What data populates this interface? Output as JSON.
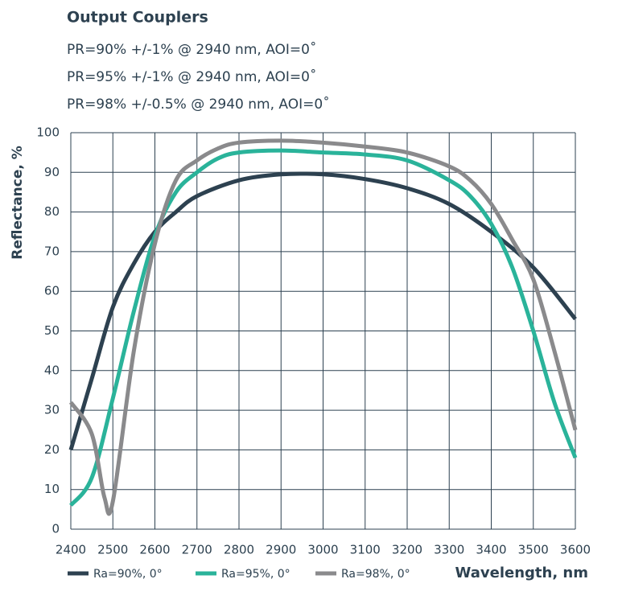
{
  "chart_data": {
    "type": "line",
    "title": "Output Couplers",
    "subtitle": [
      "PR=90% +/-1% @ 2940 nm, AOI=0˚",
      "PR=95% +/-1% @ 2940 nm, AOI=0˚",
      "PR=98% +/-0.5% @ 2940 nm, AOI=0˚"
    ],
    "x_label": "Wavelength, nm",
    "y_label": "Reflectance, %",
    "xlim": [
      2400,
      3600
    ],
    "xticks": [
      2400,
      2500,
      2600,
      2700,
      2800,
      2900,
      3000,
      3100,
      3200,
      3300,
      3400,
      3500,
      3600
    ],
    "ylim": [
      0,
      100
    ],
    "yticks": [
      0,
      10,
      20,
      30,
      40,
      50,
      60,
      70,
      80,
      90,
      100
    ],
    "grid": true,
    "legend": "bottom",
    "series": [
      {
        "name": "Ra=90%, 0°",
        "color": "#2d4150",
        "x": [
          2400,
          2450,
          2500,
          2550,
          2600,
          2650,
          2700,
          2800,
          2900,
          3000,
          3100,
          3200,
          3300,
          3400,
          3500,
          3600
        ],
        "values": [
          20,
          38,
          56,
          67,
          75,
          80,
          84,
          88,
          89.5,
          89.5,
          88.3,
          86,
          82,
          75,
          66,
          53
        ]
      },
      {
        "name": "Ra=95%, 0°",
        "color": "#2ab39a",
        "x": [
          2400,
          2450,
          2500,
          2550,
          2600,
          2650,
          2700,
          2750,
          2800,
          2900,
          3000,
          3100,
          3200,
          3300,
          3350,
          3400,
          3450,
          3500,
          3550,
          3600
        ],
        "values": [
          6,
          13,
          33,
          55,
          74,
          85,
          90,
          93.5,
          95,
          95.5,
          95,
          94.5,
          93,
          88,
          84,
          77,
          66,
          50,
          32,
          18
        ]
      },
      {
        "name": "Ra=98%, 0°",
        "color": "#8a8a8c",
        "x": [
          2400,
          2450,
          2480,
          2500,
          2550,
          2600,
          2650,
          2700,
          2750,
          2800,
          2900,
          3000,
          3100,
          3200,
          3300,
          3350,
          3400,
          3450,
          3500,
          3550,
          3600
        ],
        "values": [
          32,
          24,
          8,
          7,
          45,
          72,
          88,
          93,
          96,
          97.5,
          98,
          97.5,
          96.5,
          95,
          91.5,
          88,
          82,
          73,
          63,
          45,
          25
        ]
      }
    ]
  }
}
